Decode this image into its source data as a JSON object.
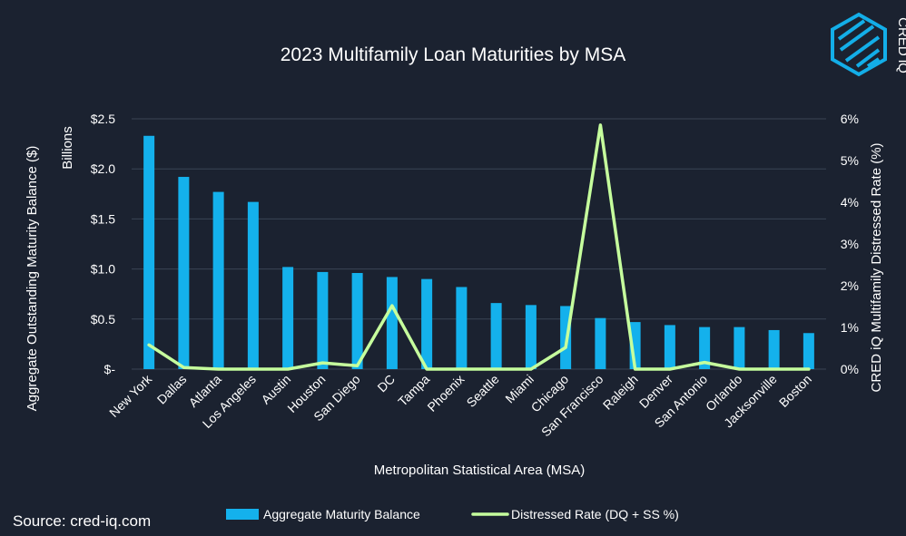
{
  "chart_data": {
    "type": "bar",
    "title": "2023 Multifamily Loan Maturities by MSA",
    "xlabel": "Metropolitan Statistical Area (MSA)",
    "ylabel": "Aggregate Outstanding Maturity Balance ($)",
    "y_units": "Billions",
    "y2label": "CRED iQ  Multifamily Distressed Rate (%)",
    "ylim": [
      0,
      2.5
    ],
    "y2lim": [
      0,
      6
    ],
    "y_ticks": [
      "$-",
      "$0.5",
      "$1.0",
      "$1.5",
      "$2.0",
      "$2.5"
    ],
    "y2_ticks": [
      "0%",
      "1%",
      "2%",
      "3%",
      "4%",
      "5%",
      "6%"
    ],
    "categories": [
      "New York",
      "Dallas",
      "Atlanta",
      "Los Angeles",
      "Austin",
      "Houston",
      "San Diego",
      "DC",
      "Tampa",
      "Phoenix",
      "Seattle",
      "Miami",
      "Chicago",
      "San Francisco",
      "Raleigh",
      "Denver",
      "San Antonio",
      "Orlando",
      "Jacksonville",
      "Boston"
    ],
    "series": [
      {
        "name": "Aggregate Maturity Balance",
        "type": "bar",
        "axis": "left",
        "color": "#14b1ec",
        "values": [
          2.33,
          1.92,
          1.77,
          1.67,
          1.02,
          0.97,
          0.96,
          0.92,
          0.9,
          0.82,
          0.66,
          0.64,
          0.63,
          0.51,
          0.47,
          0.44,
          0.42,
          0.42,
          0.39,
          0.36
        ]
      },
      {
        "name": "Distressed Rate (DQ + SS %)",
        "type": "line",
        "axis": "right",
        "color": "#c6ff9d",
        "values": [
          0.58,
          0.04,
          0.0,
          0.0,
          0.0,
          0.15,
          0.08,
          1.52,
          0.0,
          0.0,
          0.0,
          0.0,
          0.52,
          5.85,
          0.0,
          0.0,
          0.16,
          0.0,
          0.0,
          0.0
        ]
      }
    ]
  },
  "source": "Source: cred-iq.com",
  "logo_text": "CRED iQ",
  "colors": {
    "background": "#1b2230",
    "bar": "#14b1ec",
    "line": "#c6ff9d",
    "grid": "#3b4454"
  }
}
